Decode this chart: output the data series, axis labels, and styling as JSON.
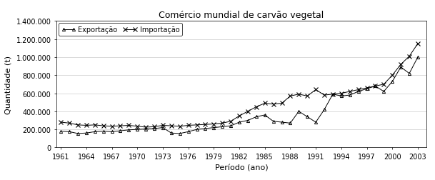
{
  "title": "Comércio mundial de carvão vegetal",
  "xlabel": "Período (ano)",
  "ylabel": "Quantidade (t)",
  "background_color": "#ffffff",
  "exportacao": {
    "label": "Exportação",
    "marker": "^",
    "color": "#000000",
    "years": [
      1961,
      1962,
      1963,
      1964,
      1965,
      1966,
      1967,
      1968,
      1969,
      1970,
      1971,
      1972,
      1973,
      1974,
      1975,
      1976,
      1977,
      1978,
      1979,
      1980,
      1981,
      1982,
      1983,
      1984,
      1985,
      1986,
      1987,
      1988,
      1989,
      1990,
      1991,
      1992,
      1993,
      1994,
      1995,
      1996,
      1997,
      1998,
      1999,
      2000,
      2001,
      2002,
      2003
    ],
    "values": [
      180000,
      175000,
      155000,
      160000,
      175000,
      180000,
      175000,
      185000,
      195000,
      200000,
      205000,
      210000,
      220000,
      160000,
      155000,
      175000,
      200000,
      210000,
      220000,
      230000,
      240000,
      280000,
      300000,
      340000,
      360000,
      290000,
      280000,
      270000,
      400000,
      340000,
      280000,
      420000,
      590000,
      570000,
      580000,
      620000,
      650000,
      680000,
      620000,
      730000,
      890000,
      820000,
      1000000
    ]
  },
  "importacao": {
    "label": "Importação",
    "marker": "x",
    "color": "#000000",
    "years": [
      1961,
      1962,
      1963,
      1964,
      1965,
      1966,
      1967,
      1968,
      1969,
      1970,
      1971,
      1972,
      1973,
      1974,
      1975,
      1976,
      1977,
      1978,
      1979,
      1980,
      1981,
      1982,
      1983,
      1984,
      1985,
      1986,
      1987,
      1988,
      1989,
      1990,
      1991,
      1992,
      1993,
      1994,
      1995,
      1996,
      1997,
      1998,
      1999,
      2000,
      2001,
      2002,
      2003
    ],
    "values": [
      280000,
      270000,
      250000,
      245000,
      250000,
      240000,
      235000,
      240000,
      245000,
      235000,
      225000,
      230000,
      245000,
      240000,
      235000,
      245000,
      250000,
      255000,
      260000,
      270000,
      290000,
      350000,
      400000,
      450000,
      490000,
      480000,
      490000,
      570000,
      590000,
      570000,
      640000,
      580000,
      590000,
      600000,
      620000,
      640000,
      660000,
      680000,
      700000,
      800000,
      920000,
      1010000,
      1150000
    ]
  },
  "ylim": [
    0,
    1400000
  ],
  "yticks": [
    0,
    200000,
    400000,
    600000,
    800000,
    1000000,
    1200000,
    1400000
  ],
  "xticks": [
    1961,
    1964,
    1967,
    1970,
    1973,
    1976,
    1979,
    1982,
    1985,
    1988,
    1991,
    1994,
    1997,
    2000,
    2003
  ],
  "xlim": [
    1960.5,
    2004
  ]
}
